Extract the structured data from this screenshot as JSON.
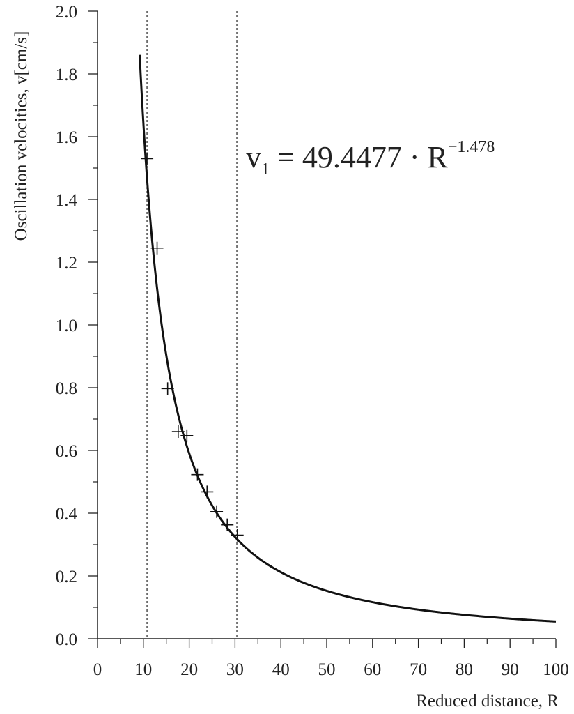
{
  "chart_data": {
    "type": "scatter",
    "xlabel": "Reduced distance, R",
    "ylabel": "Oscillation velocities, v[cm/s]",
    "xlim": [
      0,
      100
    ],
    "ylim": [
      0,
      2.0
    ],
    "x_ticks": [
      0,
      10,
      20,
      30,
      40,
      50,
      60,
      70,
      80,
      90,
      100
    ],
    "y_ticks": [
      0.0,
      0.2,
      0.4,
      0.6,
      0.8,
      1.0,
      1.2,
      1.4,
      1.6,
      1.8,
      2.0
    ],
    "x_tick_labels": [
      "0",
      "10",
      "20",
      "30",
      "40",
      "50",
      "60",
      "70",
      "80",
      "90",
      "100"
    ],
    "y_tick_labels": [
      "0.0",
      "0.2",
      "0.4",
      "0.6",
      "0.8",
      "1.0",
      "1.2",
      "1.4",
      "1.6",
      "1.8",
      "2.0"
    ],
    "grid": false,
    "points": [
      {
        "x": 10.8,
        "y": 1.53
      },
      {
        "x": 13.0,
        "y": 1.245
      },
      {
        "x": 15.3,
        "y": 0.797
      },
      {
        "x": 17.6,
        "y": 0.66
      },
      {
        "x": 19.5,
        "y": 0.647
      },
      {
        "x": 21.8,
        "y": 0.523
      },
      {
        "x": 23.9,
        "y": 0.468
      },
      {
        "x": 26.0,
        "y": 0.405
      },
      {
        "x": 28.3,
        "y": 0.363
      },
      {
        "x": 30.5,
        "y": 0.33
      }
    ],
    "fit": {
      "coefficient": 49.4477,
      "exponent": -1.478,
      "x_range": [
        9.2,
        100
      ]
    },
    "reference_lines_x": [
      10.8,
      30.4
    ],
    "equation": {
      "lhs": "v",
      "sub": "1",
      "rhs": " = 49.4477 · R",
      "exp": "−1.478"
    }
  }
}
